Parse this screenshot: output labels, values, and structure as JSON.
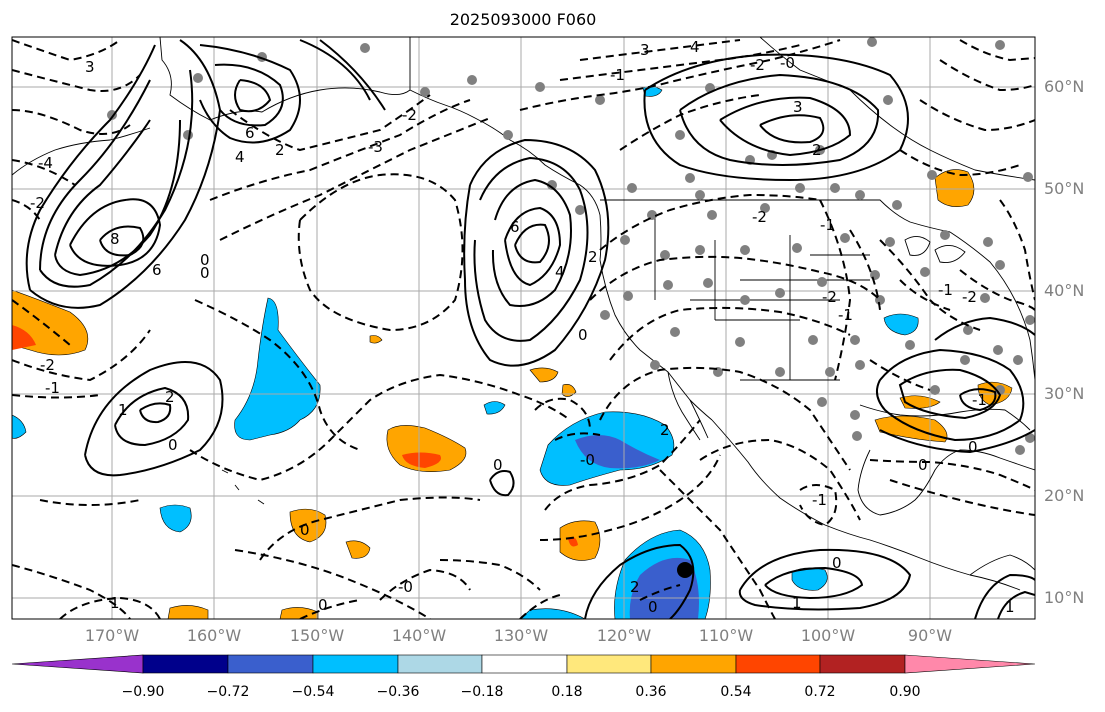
{
  "title": "2025093000 F060",
  "lat_labels": [
    "60°N",
    "50°N",
    "40°N",
    "30°N",
    "20°N",
    "10°N"
  ],
  "lon_labels": [
    "170°W",
    "160°W",
    "150°W",
    "140°W",
    "130°W",
    "120°W",
    "110°W",
    "100°W",
    "90°W"
  ],
  "colorbar": {
    "ticks": [
      "−0.90",
      "−0.72",
      "−0.54",
      "−0.36",
      "−0.18",
      "0.18",
      "0.36",
      "0.54",
      "0.72",
      "0.90"
    ],
    "colors": [
      "#9932cc",
      "#00008b",
      "#3a5fcd",
      "#00bfff",
      "#add8e6",
      "#ffffff",
      "#ffe87c",
      "#ffa500",
      "#ff4500",
      "#b22222",
      "#ff88aa"
    ]
  },
  "contour_labels": [
    "3",
    "4",
    "3",
    "-2",
    "-0",
    "-1",
    "-4",
    "-2",
    "6",
    "4",
    "2",
    "8",
    "6",
    "-3",
    "6",
    "4",
    "2",
    "0",
    "3",
    "2",
    "-2",
    "0",
    "-2",
    "-1",
    "1",
    "2",
    "0",
    "1",
    "-2",
    "-1",
    "0",
    "-0",
    "0",
    "-0",
    "2",
    "0",
    "2",
    "-1",
    "0",
    "1",
    "0",
    "1",
    "-2",
    "-1",
    "0",
    "-1",
    "0",
    "-1",
    "-2",
    "0"
  ]
}
